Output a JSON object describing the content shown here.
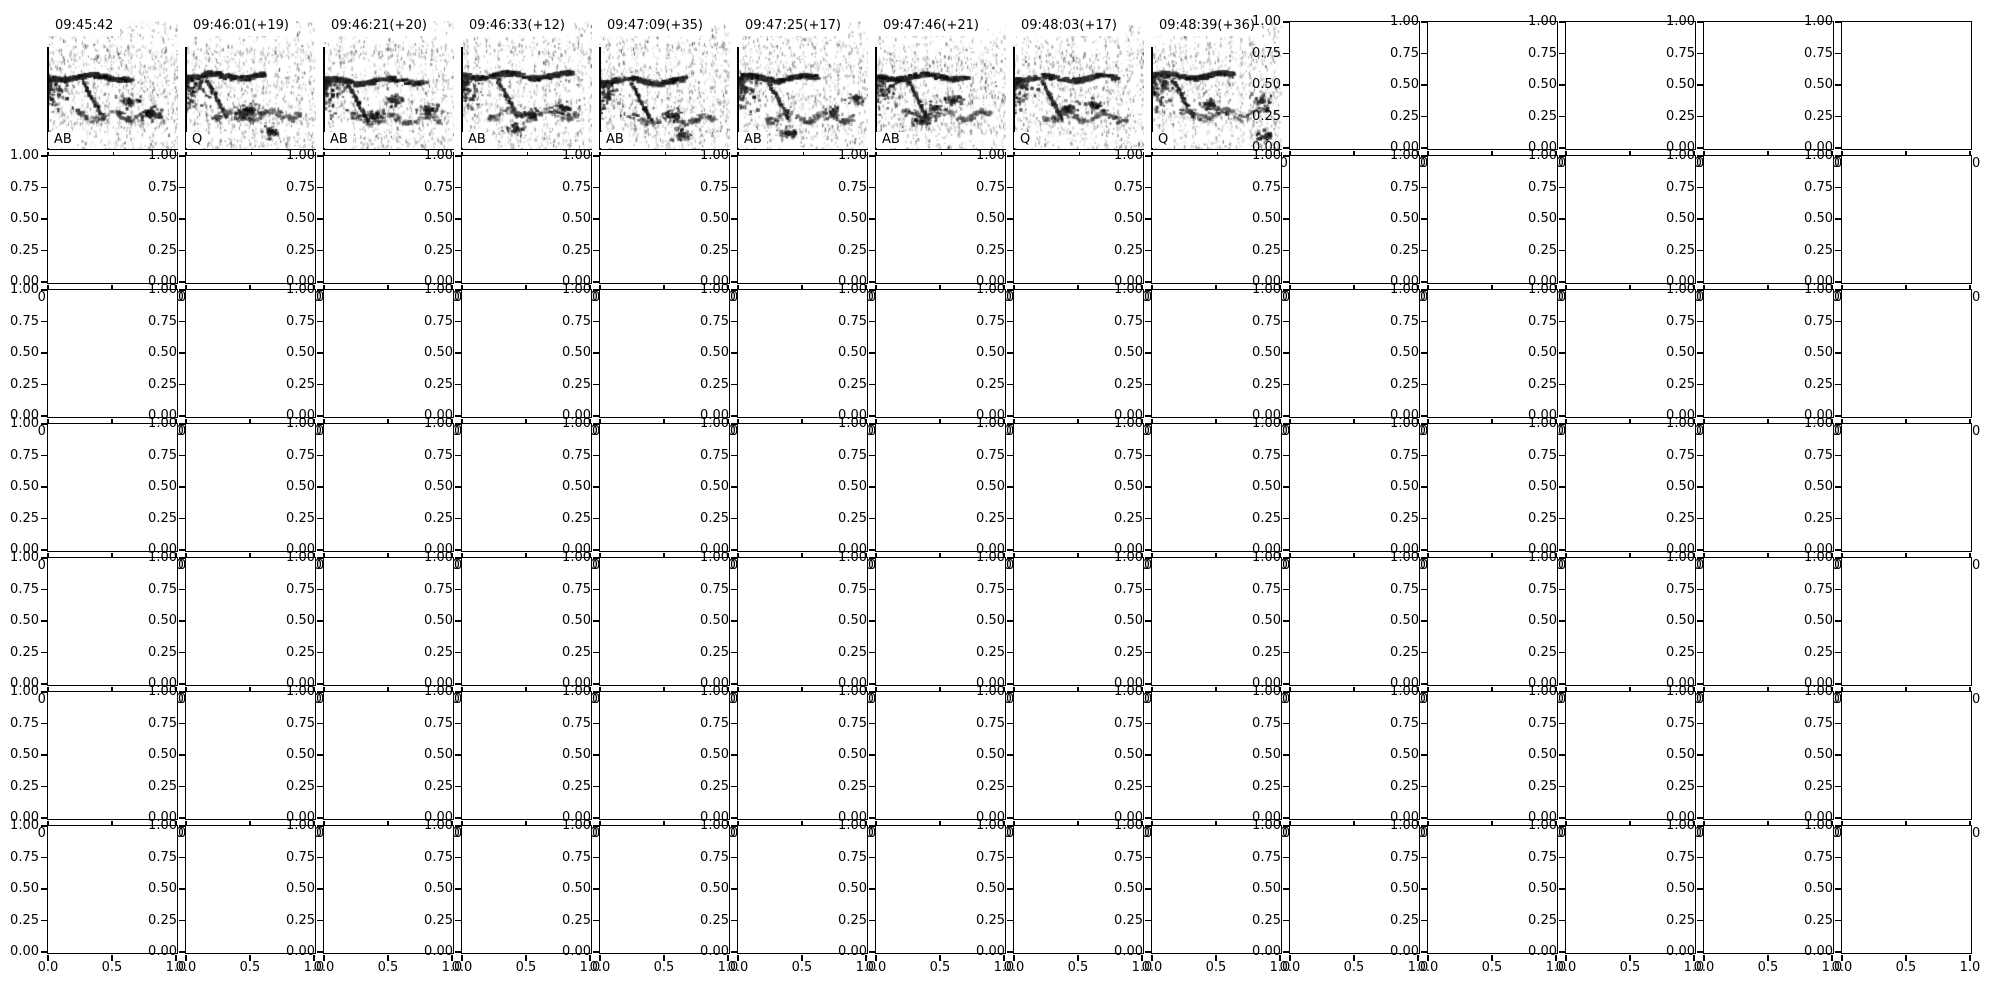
{
  "figure": {
    "background": "#ffffff",
    "axis_color": "#000000",
    "text_color": "#000000",
    "grid": {
      "rows": 7,
      "cols": 14,
      "spectrogram_cols": 9
    },
    "y_tick_labels": [
      "1.00",
      "0.75",
      "0.50",
      "0.25",
      "0.00"
    ],
    "x_tick_labels": [
      "0.0",
      "0.5",
      "1.0"
    ],
    "spectrograms": [
      {
        "timestamp": "09:45:42",
        "label": "AB"
      },
      {
        "timestamp": "09:46:01(+19)",
        "label": "Q"
      },
      {
        "timestamp": "09:46:21(+20)",
        "label": "AB"
      },
      {
        "timestamp": "09:46:33(+12)",
        "label": "AB"
      },
      {
        "timestamp": "09:47:09(+35)",
        "label": "AB"
      },
      {
        "timestamp": "09:47:25(+17)",
        "label": "AB"
      },
      {
        "timestamp": "09:47:46(+21)",
        "label": "AB"
      },
      {
        "timestamp": "09:48:03(+17)",
        "label": "Q"
      },
      {
        "timestamp": "09:48:39(+36)",
        "label": "Q"
      }
    ]
  },
  "chart_data": {
    "type": "heatmap",
    "title": "",
    "layout": {
      "grid_rows": 7,
      "grid_cols": 14,
      "description": "7x14 grid of tightly packed subplots; row 1 columns 1-9 contain grayscale spectrogram image crops annotated with a timestamp (top-left) and a channel/quality label (bottom-left); all remaining subplots are empty axes with identical 0-1 ranges whose tick labels overlap neighbouring panels",
      "legend": "none",
      "grid_lines": false
    },
    "subplot_axes": {
      "xlim": [
        0.0,
        1.0
      ],
      "ylim": [
        0.0,
        1.0
      ],
      "x_ticks": [
        0.0,
        0.5,
        1.0
      ],
      "y_ticks": [
        0.0,
        0.25,
        0.5,
        0.75,
        1.0
      ]
    },
    "spectrogram_panels": [
      {
        "time": "09:45:42",
        "offset_s": null,
        "label": "AB"
      },
      {
        "time": "09:46:01",
        "offset_s": 19,
        "label": "Q"
      },
      {
        "time": "09:46:21",
        "offset_s": 20,
        "label": "AB"
      },
      {
        "time": "09:46:33",
        "offset_s": 12,
        "label": "AB"
      },
      {
        "time": "09:47:09",
        "offset_s": 35,
        "label": "AB"
      },
      {
        "time": "09:47:25",
        "offset_s": 17,
        "label": "AB"
      },
      {
        "time": "09:47:46",
        "offset_s": 21,
        "label": "AB"
      },
      {
        "time": "09:48:03",
        "offset_s": 17,
        "label": "Q"
      },
      {
        "time": "09:48:39",
        "offset_s": 36,
        "label": "Q"
      }
    ]
  }
}
